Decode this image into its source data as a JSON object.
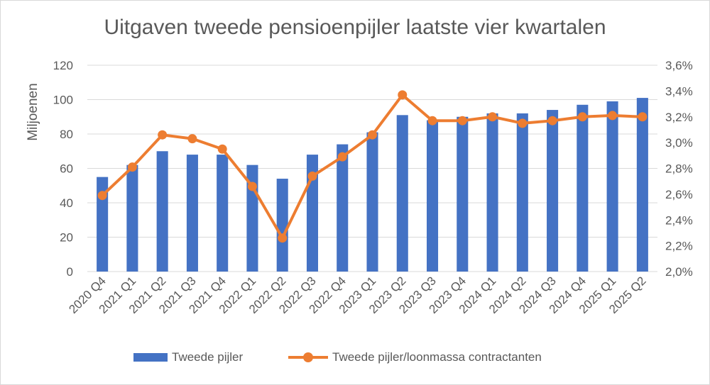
{
  "chart_data": {
    "type": "bar",
    "title": "Uitgaven tweede pensioenpijler laatste vier kwartalen",
    "ylabel": "Miljoenen",
    "y2label": "",
    "ylim": [
      0,
      120
    ],
    "y2lim": [
      2.0,
      3.6
    ],
    "yticks": [
      "0",
      "20",
      "40",
      "60",
      "80",
      "100",
      "120"
    ],
    "y2ticks": [
      "2,0%",
      "2,2%",
      "2,4%",
      "2,6%",
      "2,8%",
      "3,0%",
      "3,2%",
      "3,4%",
      "3,6%"
    ],
    "categories": [
      "2020 Q4",
      "2021 Q1",
      "2021 Q2",
      "2021 Q3",
      "2021 Q4",
      "2022 Q1",
      "2022 Q2",
      "2022 Q3",
      "2022 Q4",
      "2023 Q1",
      "2023 Q2",
      "2023 Q3",
      "2023 Q4",
      "2024 Q1",
      "2024 Q2",
      "2024 Q3",
      "2024 Q4",
      "2025 Q1",
      "2025 Q2"
    ],
    "series": [
      {
        "name": "Tweede pijler",
        "type": "bar",
        "axis": "left",
        "color": "#4472c4",
        "values": [
          55,
          62,
          70,
          68,
          68,
          62,
          54,
          68,
          74,
          81,
          91,
          88,
          90,
          92,
          92,
          94,
          97,
          99,
          101
        ]
      },
      {
        "name": "Tweede pijler/loonmassa contractanten",
        "type": "line",
        "axis": "right",
        "color": "#ed7d31",
        "values": [
          2.59,
          2.81,
          3.06,
          3.03,
          2.95,
          2.66,
          2.26,
          2.74,
          2.89,
          3.06,
          3.37,
          3.17,
          3.17,
          3.2,
          3.15,
          3.17,
          3.2,
          3.21,
          3.2
        ]
      }
    ],
    "grid": true,
    "legend_position": "bottom"
  }
}
